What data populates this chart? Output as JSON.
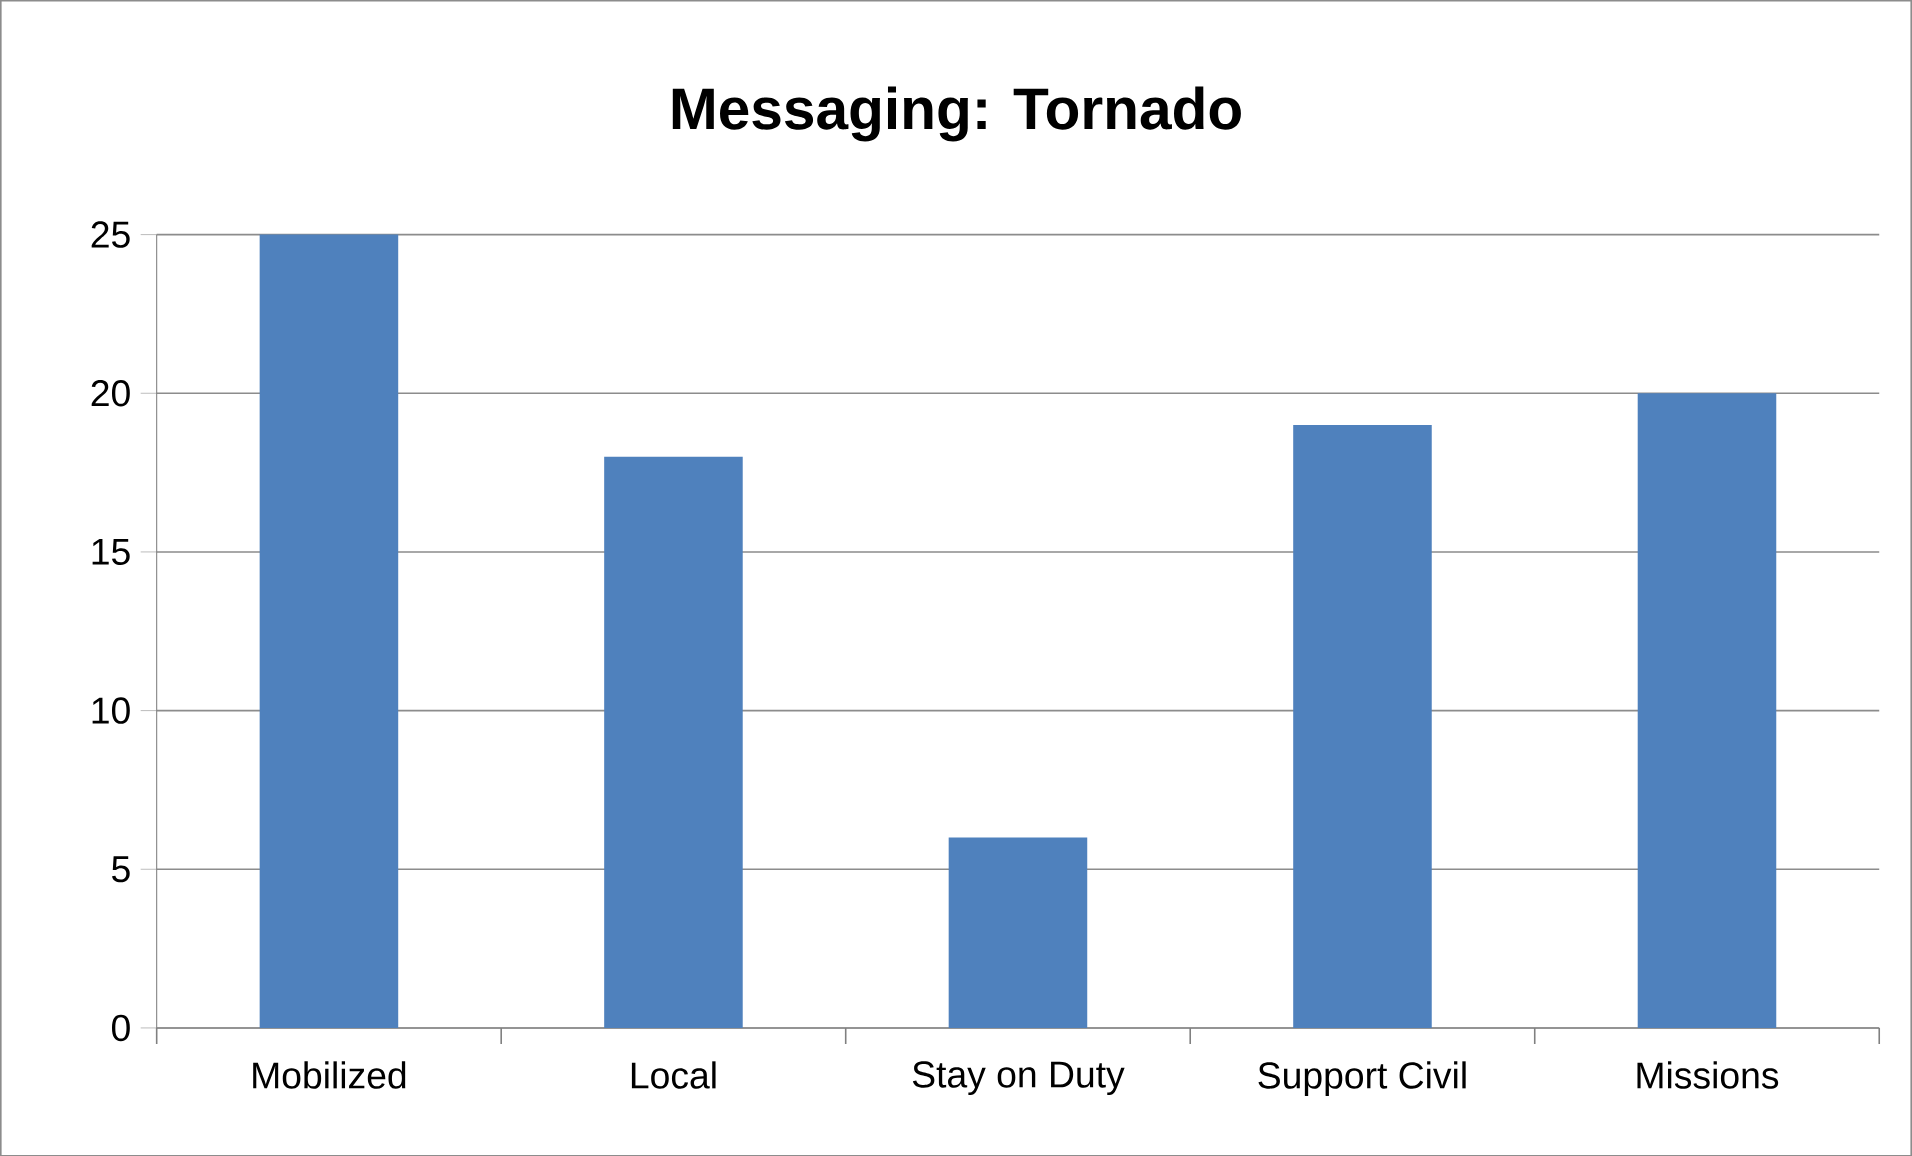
{
  "chart_data": {
    "type": "bar",
    "title": "Messaging: Tornado",
    "categories": [
      "Mobilized",
      "Local",
      "Stay on Duty",
      "Support Civil",
      "Missions"
    ],
    "values": [
      25,
      18,
      6,
      19,
      20
    ],
    "color": "#4f81bd",
    "ylim": [
      0,
      25
    ],
    "yticks": [
      0,
      5,
      10,
      15,
      20,
      25
    ],
    "grid": "y"
  }
}
